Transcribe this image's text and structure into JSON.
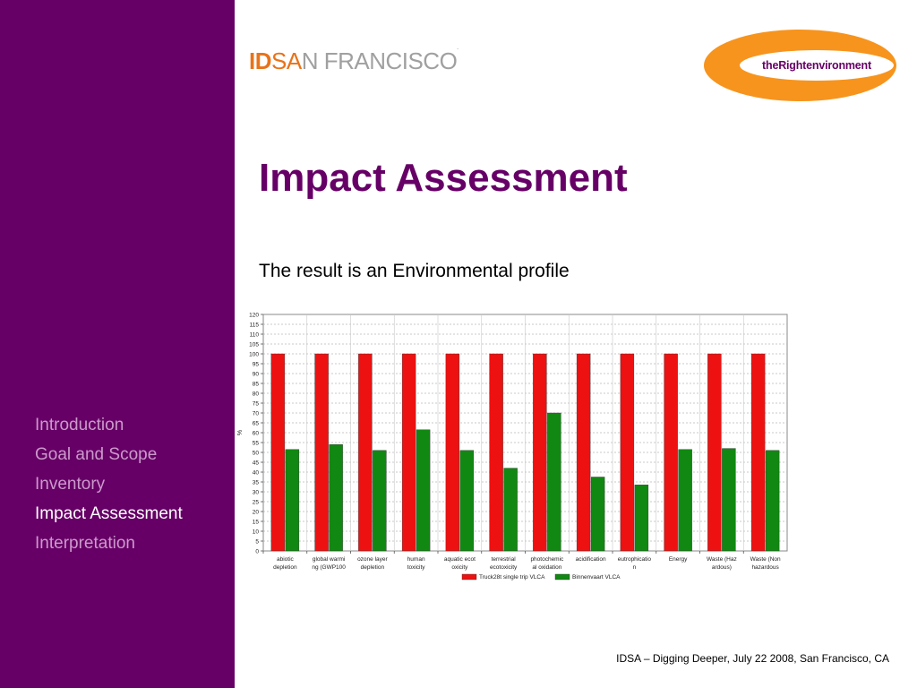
{
  "header": {
    "brand_id": "ID",
    "brand_sa": "SA",
    "brand_rest": "N FRANCISCO",
    "brand_dot": ".",
    "logo_text": "theRightenvironment"
  },
  "slide": {
    "title": "Impact Assessment",
    "subtitle": "The result is an Environmental profile"
  },
  "nav": {
    "items": [
      {
        "label": "Introduction"
      },
      {
        "label": "Goal and Scope"
      },
      {
        "label": "Inventory"
      },
      {
        "label": "Impact Assessment"
      },
      {
        "label": "Interpretation"
      }
    ],
    "active_index": 3
  },
  "footer": {
    "text": "IDSA – Digging Deeper, July 22 2008, San Francisco, CA"
  },
  "colors": {
    "sidebar": "#660066",
    "nav_inactive": "#cc99cc",
    "nav_active": "#ffffff",
    "brand_orange": "#e8731a",
    "logo_orange": "#f7941d",
    "title": "#660066"
  },
  "chart_data": {
    "type": "bar",
    "ylabel": "%",
    "xlabel": "",
    "title": "",
    "ylim": [
      0,
      120
    ],
    "ytick_step": 5,
    "grid": true,
    "legend_position": "bottom",
    "categories": [
      [
        "abiotic",
        "depletion"
      ],
      [
        "global warmi",
        "ng (GWP100"
      ],
      [
        "ozone layer",
        "depletion"
      ],
      [
        "human",
        "toxicity"
      ],
      [
        "aquatic ecot",
        "oxicity"
      ],
      [
        "terrestrial",
        "ecotoxicity"
      ],
      [
        "photochemic",
        "al oxidation"
      ],
      [
        "acidification"
      ],
      [
        "eutrophicatio",
        "n"
      ],
      [
        "Energy"
      ],
      [
        "Waste (Haz",
        "ardous)"
      ],
      [
        "Waste (Non",
        "hazardous"
      ]
    ],
    "series": [
      {
        "name": "Truck28t single trip VLCA",
        "color": "#ee1111",
        "values": [
          100,
          100,
          100,
          100,
          100,
          100,
          100,
          100,
          100,
          100,
          100,
          100
        ]
      },
      {
        "name": "Binnenvaart VLCA",
        "color": "#118811",
        "values": [
          51.5,
          54,
          51,
          61.5,
          51,
          42,
          70,
          37.5,
          33.5,
          51.5,
          52,
          51
        ]
      }
    ]
  }
}
